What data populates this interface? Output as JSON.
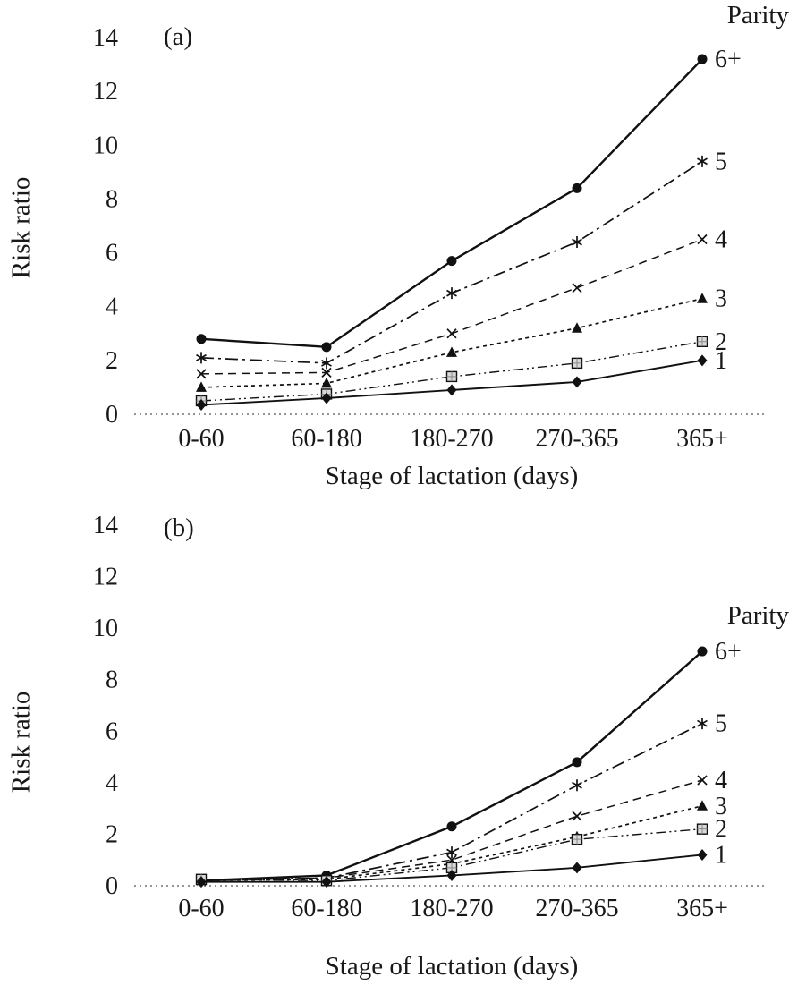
{
  "figure": {
    "ink_color": "#111111",
    "background_color": "#ffffff"
  },
  "chart_data": [
    {
      "type": "line",
      "panel_label": "(a)",
      "legend_title": "Parity",
      "ylabel": "Risk ratio",
      "xlabel": "Stage of lactation (days)",
      "ylim": [
        0,
        14
      ],
      "yticks": [
        0,
        2,
        4,
        6,
        8,
        10,
        12,
        14
      ],
      "categories": [
        "0-60",
        "60-180",
        "180-270",
        "270-365",
        "365+"
      ],
      "grid": false,
      "legend_position": "right-of-last-point",
      "series": [
        {
          "name": "6+",
          "marker": "filled-circle",
          "line_style": "solid",
          "values": [
            2.8,
            2.5,
            5.7,
            8.4,
            13.2
          ]
        },
        {
          "name": "5",
          "marker": "asterisk",
          "line_style": "dash-dot",
          "values": [
            2.1,
            1.9,
            4.5,
            6.4,
            9.4
          ]
        },
        {
          "name": "4",
          "marker": "x-cross",
          "line_style": "dashed",
          "values": [
            1.5,
            1.55,
            3.0,
            4.7,
            6.5
          ]
        },
        {
          "name": "3",
          "marker": "filled-triangle",
          "line_style": "short-dash",
          "values": [
            1.0,
            1.15,
            2.3,
            3.2,
            4.3
          ]
        },
        {
          "name": "2",
          "marker": "open-square",
          "line_style": "dash-dot-dot",
          "values": [
            0.5,
            0.75,
            1.4,
            1.9,
            2.7
          ]
        },
        {
          "name": "1",
          "marker": "filled-diamond",
          "line_style": "solid",
          "values": [
            0.35,
            0.6,
            0.9,
            1.2,
            2.0
          ]
        }
      ]
    },
    {
      "type": "line",
      "panel_label": "(b)",
      "legend_title": "Parity",
      "ylabel": "Risk ratio",
      "xlabel": "Stage of lactation (days)",
      "ylim": [
        0,
        14
      ],
      "yticks": [
        0,
        2,
        4,
        6,
        8,
        10,
        12,
        14
      ],
      "categories": [
        "0-60",
        "60-180",
        "180-270",
        "270-365",
        "365+"
      ],
      "grid": false,
      "legend_position": "right-of-last-point",
      "series": [
        {
          "name": "6+",
          "marker": "filled-circle",
          "line_style": "solid",
          "values": [
            0.2,
            0.4,
            2.3,
            4.8,
            9.1
          ]
        },
        {
          "name": "5",
          "marker": "asterisk",
          "line_style": "dash-dot",
          "values": [
            0.2,
            0.3,
            1.3,
            3.9,
            6.3
          ]
        },
        {
          "name": "4",
          "marker": "x-cross",
          "line_style": "dashed",
          "values": [
            0.2,
            0.3,
            1.0,
            2.7,
            4.1
          ]
        },
        {
          "name": "3",
          "marker": "filled-triangle",
          "line_style": "short-dash",
          "values": [
            0.2,
            0.25,
            0.85,
            1.9,
            3.1
          ]
        },
        {
          "name": "2",
          "marker": "open-square",
          "line_style": "dash-dot-dot",
          "values": [
            0.25,
            0.2,
            0.7,
            1.8,
            2.2
          ]
        },
        {
          "name": "1",
          "marker": "filled-diamond",
          "line_style": "solid",
          "values": [
            0.15,
            0.15,
            0.4,
            0.7,
            1.2
          ]
        }
      ]
    }
  ]
}
